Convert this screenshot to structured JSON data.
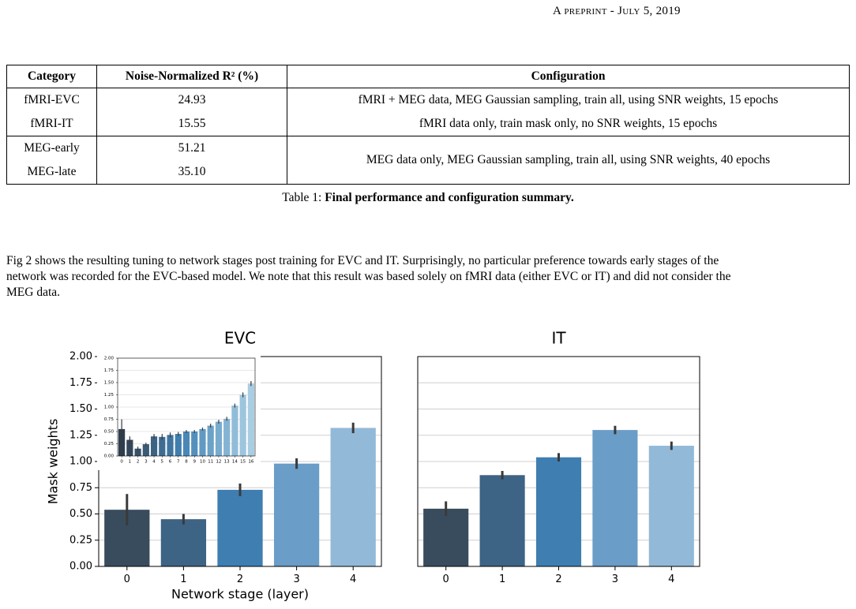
{
  "header": {
    "running_title": "A preprint - July 5, 2019"
  },
  "table": {
    "columns": [
      "Category",
      "Noise-Normalized R² (%)",
      "Configuration"
    ],
    "rows": [
      [
        "fMRI-EVC",
        "24.93",
        "fMRI + MEG data, MEG Gaussian sampling, train all, using SNR weights, 15 epochs"
      ],
      [
        "fMRI-IT",
        "15.55",
        "fMRI data only, train mask only, no SNR weights, 15 epochs"
      ],
      [
        "MEG-early",
        "51.21",
        "MEG data only, MEG Gaussian sampling, train all, using SNR weights, 40 epochs"
      ],
      [
        "MEG-late",
        "35.10"
      ]
    ],
    "caption_label": "Table 1:",
    "caption_text": "Final performance and configuration summary."
  },
  "paragraph": "Fig 2 shows the resulting tuning to network stages post training for EVC and IT. Surprisingly, no particular preference towards early stages of the network was recorded for the EVC-based model. We note that this result was based solely on fMRI data (either EVC or IT) and did not consider the MEG data.",
  "chart_data": [
    {
      "type": "bar",
      "title": "EVC",
      "x_label": "Network stage (layer)",
      "y_label": "Mask weights",
      "categories": [
        "0",
        "1",
        "2",
        "3",
        "4"
      ],
      "values": [
        0.54,
        0.45,
        0.73,
        0.98,
        1.32
      ],
      "errors": [
        0.15,
        0.05,
        0.06,
        0.05,
        0.05
      ],
      "colors": [
        "#394c5e",
        "#3d6385",
        "#3f7eb1",
        "#6a9dc7",
        "#92b9d8"
      ],
      "ylim": [
        0,
        2
      ],
      "yticks": [
        {
          "value": 0,
          "label": "0.00"
        },
        {
          "value": 0.25,
          "label": "0.25"
        },
        {
          "value": 0.5,
          "label": "0.50"
        },
        {
          "value": 0.75,
          "label": "0.75"
        },
        {
          "value": 1,
          "label": "1.00"
        },
        {
          "value": 1.25,
          "label": "1.25"
        },
        {
          "value": 1.5,
          "label": "1.50"
        },
        {
          "value": 1.75,
          "label": "1.75"
        },
        {
          "value": 2,
          "label": "2.00"
        }
      ],
      "grid": true
    },
    {
      "type": "bar",
      "title": "IT",
      "categories": [
        "0",
        "1",
        "2",
        "3",
        "4"
      ],
      "values": [
        0.55,
        0.87,
        1.04,
        1.3,
        1.15
      ],
      "errors": [
        0.07,
        0.04,
        0.04,
        0.04,
        0.04
      ],
      "colors": [
        "#394c5e",
        "#3d6385",
        "#3f7eb1",
        "#6a9dc7",
        "#92b9d8"
      ],
      "ylim": [
        0,
        2
      ],
      "yticks": [
        0,
        0.25,
        0.5,
        0.75,
        1,
        1.25,
        1.5,
        1.75,
        2
      ],
      "grid": true
    },
    {
      "type": "bar",
      "categories": [
        "0",
        "1",
        "2",
        "3",
        "4",
        "5",
        "6",
        "7",
        "8",
        "9",
        "10",
        "11",
        "12",
        "13",
        "14",
        "15",
        "16"
      ],
      "values": [
        0.55,
        0.33,
        0.15,
        0.24,
        0.4,
        0.39,
        0.43,
        0.45,
        0.5,
        0.5,
        0.55,
        0.62,
        0.7,
        0.76,
        1.03,
        1.25,
        1.48
      ],
      "errors": [
        0.2,
        0.07,
        0.04,
        0.03,
        0.05,
        0.06,
        0.05,
        0.04,
        0.03,
        0.03,
        0.03,
        0.04,
        0.04,
        0.04,
        0.04,
        0.05,
        0.05
      ],
      "colors": [
        "#2f3d4c",
        "#34475a",
        "#385168",
        "#3b5a76",
        "#3d6384",
        "#3e6c92",
        "#3f75a0",
        "#407eae",
        "#4a87b7",
        "#5590bd",
        "#6199c3",
        "#6da2c8",
        "#79abce",
        "#85b3d3",
        "#91bcd8",
        "#9dc5dd",
        "#a9cde2"
      ],
      "ylim": [
        0,
        2
      ],
      "yticks": [
        {
          "value": 0,
          "label": "0.00"
        },
        {
          "value": 0.25,
          "label": "0.25"
        },
        {
          "value": 0.5,
          "label": "0.50"
        },
        {
          "value": 0.75,
          "label": "0.75"
        },
        {
          "value": 1,
          "label": "1.00"
        },
        {
          "value": 1.25,
          "label": "1.25"
        },
        {
          "value": 1.5,
          "label": "1.50"
        },
        {
          "value": 1.75,
          "label": "1.75"
        },
        {
          "value": 2,
          "label": "2.00"
        }
      ],
      "grid": true
    }
  ]
}
